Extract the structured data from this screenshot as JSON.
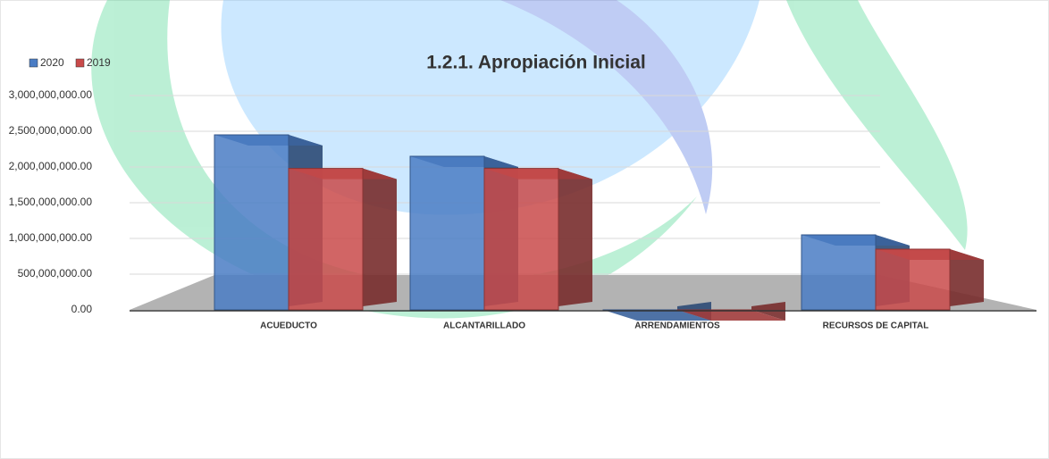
{
  "chart_data": {
    "type": "bar",
    "title": "1.2.1. Apropiación Inicial",
    "categories": [
      "ACUEDUCTO",
      "ALCANTARILLADO",
      "ARRENDAMIENTOS",
      "RECURSOS DE CAPITAL"
    ],
    "series": [
      {
        "name": "2020",
        "color": "#4a7cc4",
        "values": [
          2450000000,
          2150000000,
          0,
          1050000000
        ]
      },
      {
        "name": "2019",
        "color": "#c94a4a",
        "values": [
          1980000000,
          1980000000,
          0,
          850000000
        ]
      }
    ],
    "ylim": [
      0,
      3000000000
    ],
    "yticks": [
      {
        "value": 0,
        "label": "0.00"
      },
      {
        "value": 500000000,
        "label": "500,000,000.00"
      },
      {
        "value": 1000000000,
        "label": "1,000,000,000.00"
      },
      {
        "value": 1500000000,
        "label": "1,500,000,000.00"
      },
      {
        "value": 2000000000,
        "label": "2,000,000,000.00"
      },
      {
        "value": 2500000000,
        "label": "2,500,000,000.00"
      },
      {
        "value": 3000000000,
        "label": "3,000,000,000.00"
      }
    ],
    "grid": true
  }
}
